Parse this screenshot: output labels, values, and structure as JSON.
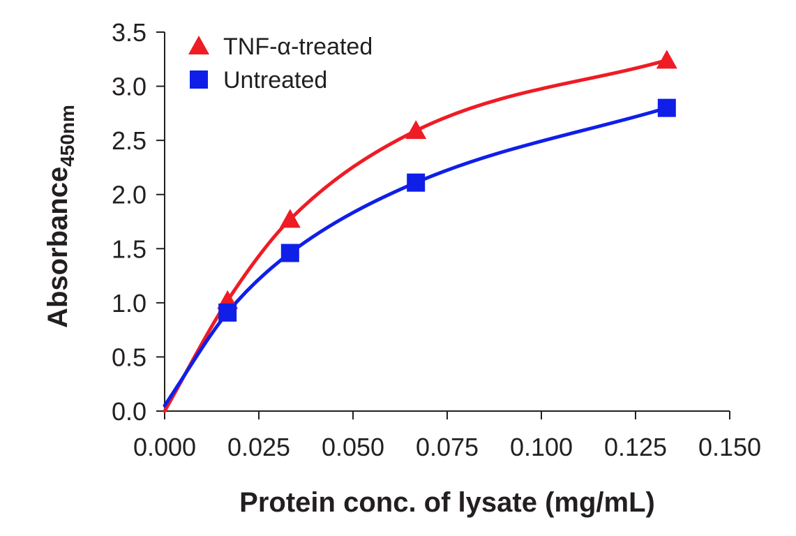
{
  "chart_data": {
    "type": "line",
    "xlabel": "Protein conc. of lysate (mg/mL)",
    "ylabel": "Absorbance",
    "ylabel_sub": "450nm",
    "xlim": [
      0,
      0.15
    ],
    "ylim": [
      0,
      3.5
    ],
    "xticks": [
      "0.000",
      "0.025",
      "0.050",
      "0.075",
      "0.100",
      "0.125",
      "0.150"
    ],
    "yticks": [
      "0.0",
      "0.5",
      "1.0",
      "1.5",
      "2.0",
      "2.5",
      "3.0",
      "3.5"
    ],
    "grid": false,
    "legend_position": "top-left",
    "series": [
      {
        "name": "TNF-α-treated",
        "color": "#ee1c24",
        "marker": "triangle",
        "x": [
          0,
          0.0167,
          0.0333,
          0.0667,
          0.1333
        ],
        "y": [
          0.0,
          1.02,
          1.77,
          2.59,
          3.24
        ]
      },
      {
        "name": "Untreated",
        "color": "#0f1fe8",
        "marker": "square",
        "x": [
          0,
          0.0167,
          0.0333,
          0.0667,
          0.1333
        ],
        "y": [
          0.05,
          0.91,
          1.46,
          2.11,
          2.8
        ]
      }
    ]
  }
}
